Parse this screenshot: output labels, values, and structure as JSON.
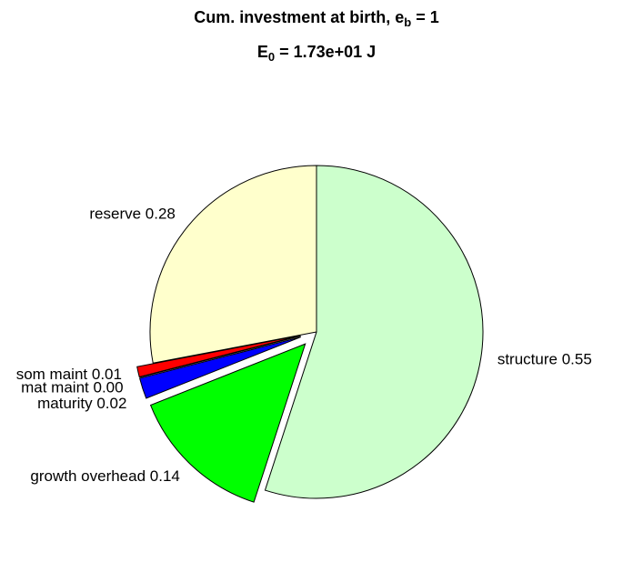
{
  "chart_data": {
    "type": "pie",
    "title": {
      "text": "Cum. investment at birth, e",
      "sub": "b",
      "tail": " = 1"
    },
    "subtitle": {
      "text": "E",
      "sub": "0",
      "tail": " = 1.73e+01 J"
    },
    "categories": [
      "structure",
      "growth overhead",
      "maturity",
      "mat maint",
      "som maint",
      "reserve"
    ],
    "values": [
      0.55,
      0.14,
      0.02,
      0.0,
      0.01,
      0.28
    ],
    "value_labels": [
      "0.55",
      "0.14",
      "0.02",
      "0.00",
      "0.01",
      "0.28"
    ],
    "colors": [
      "#ccffcc",
      "#00ff00",
      "#0000ff",
      "#000000",
      "#ff0000",
      "#ffffcc"
    ],
    "explode": [
      false,
      true,
      true,
      true,
      true,
      false
    ]
  }
}
